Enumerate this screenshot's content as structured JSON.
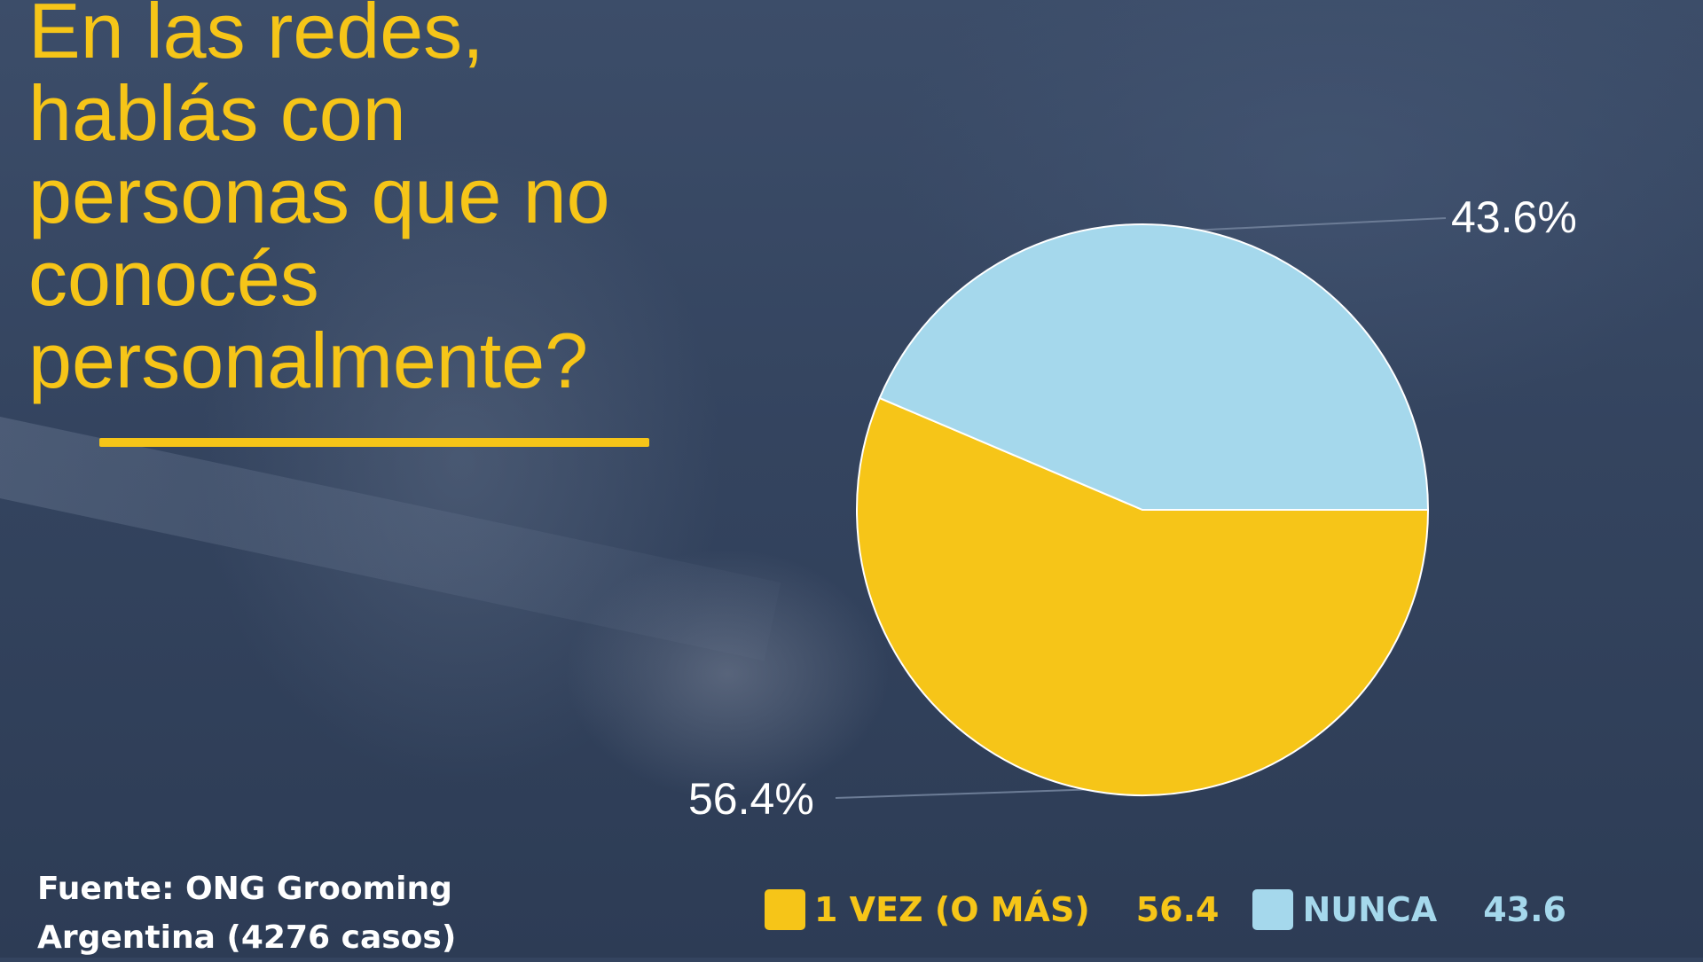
{
  "title_lines": [
    "En las redes,",
    "hablás con",
    "personas que no",
    "conocés",
    "personalmente?"
  ],
  "source_lines": [
    "Fuente: ONG Grooming",
    "Argentina (4276 casos)"
  ],
  "colors": {
    "title": "#f6c518",
    "background": "#34445f",
    "rule": "#f6c518"
  },
  "chart_data": {
    "type": "pie",
    "title": "En las redes, hablás con personas que no conocés personalmente?",
    "slices": [
      {
        "label": "1 VEZ (O MÁS)",
        "value": 56.4,
        "display_value": "56.4",
        "pct_label": "56.4%",
        "color": "#f6c518"
      },
      {
        "label": "NUNCA",
        "value": 43.6,
        "display_value": "43.6",
        "pct_label": "43.6%",
        "color": "#a5d8ec"
      }
    ],
    "legend_placement": "bottom"
  }
}
